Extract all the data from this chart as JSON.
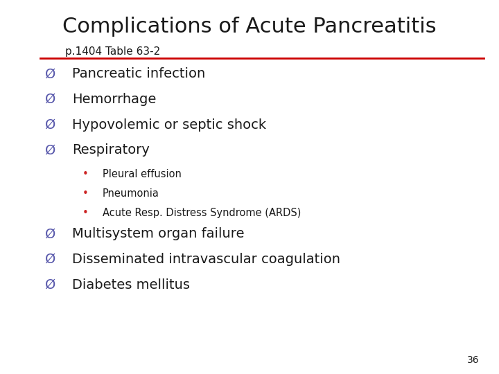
{
  "title": "Complications of Acute Pancreatitis",
  "subtitle": "p.1404 Table 63-2",
  "title_color": "#1a1a1a",
  "subtitle_color": "#1a1a1a",
  "line_color": "#cc0000",
  "background_color": "#ffffff",
  "bullet_color": "#5555aa",
  "sub_bullet_color": "#cc2222",
  "text_color": "#1a1a1a",
  "page_number": "36",
  "bullet_symbol": "Ø",
  "sub_bullet_symbol": "•",
  "main_items": [
    "Pancreatic infection",
    "Hemorrhage",
    "Hypovolemic or septic shock",
    "Respiratory"
  ],
  "sub_items": [
    "Pleural effusion",
    "Pneumonia",
    "Acute Resp. Distress Syndrome (ARDS)"
  ],
  "bottom_items": [
    "Multisystem organ failure",
    "Disseminated intravascular coagulation",
    "Diabetes mellitus"
  ],
  "title_fontsize": 22,
  "subtitle_fontsize": 11,
  "main_fontsize": 14,
  "sub_fontsize": 10.5,
  "page_fontsize": 10
}
